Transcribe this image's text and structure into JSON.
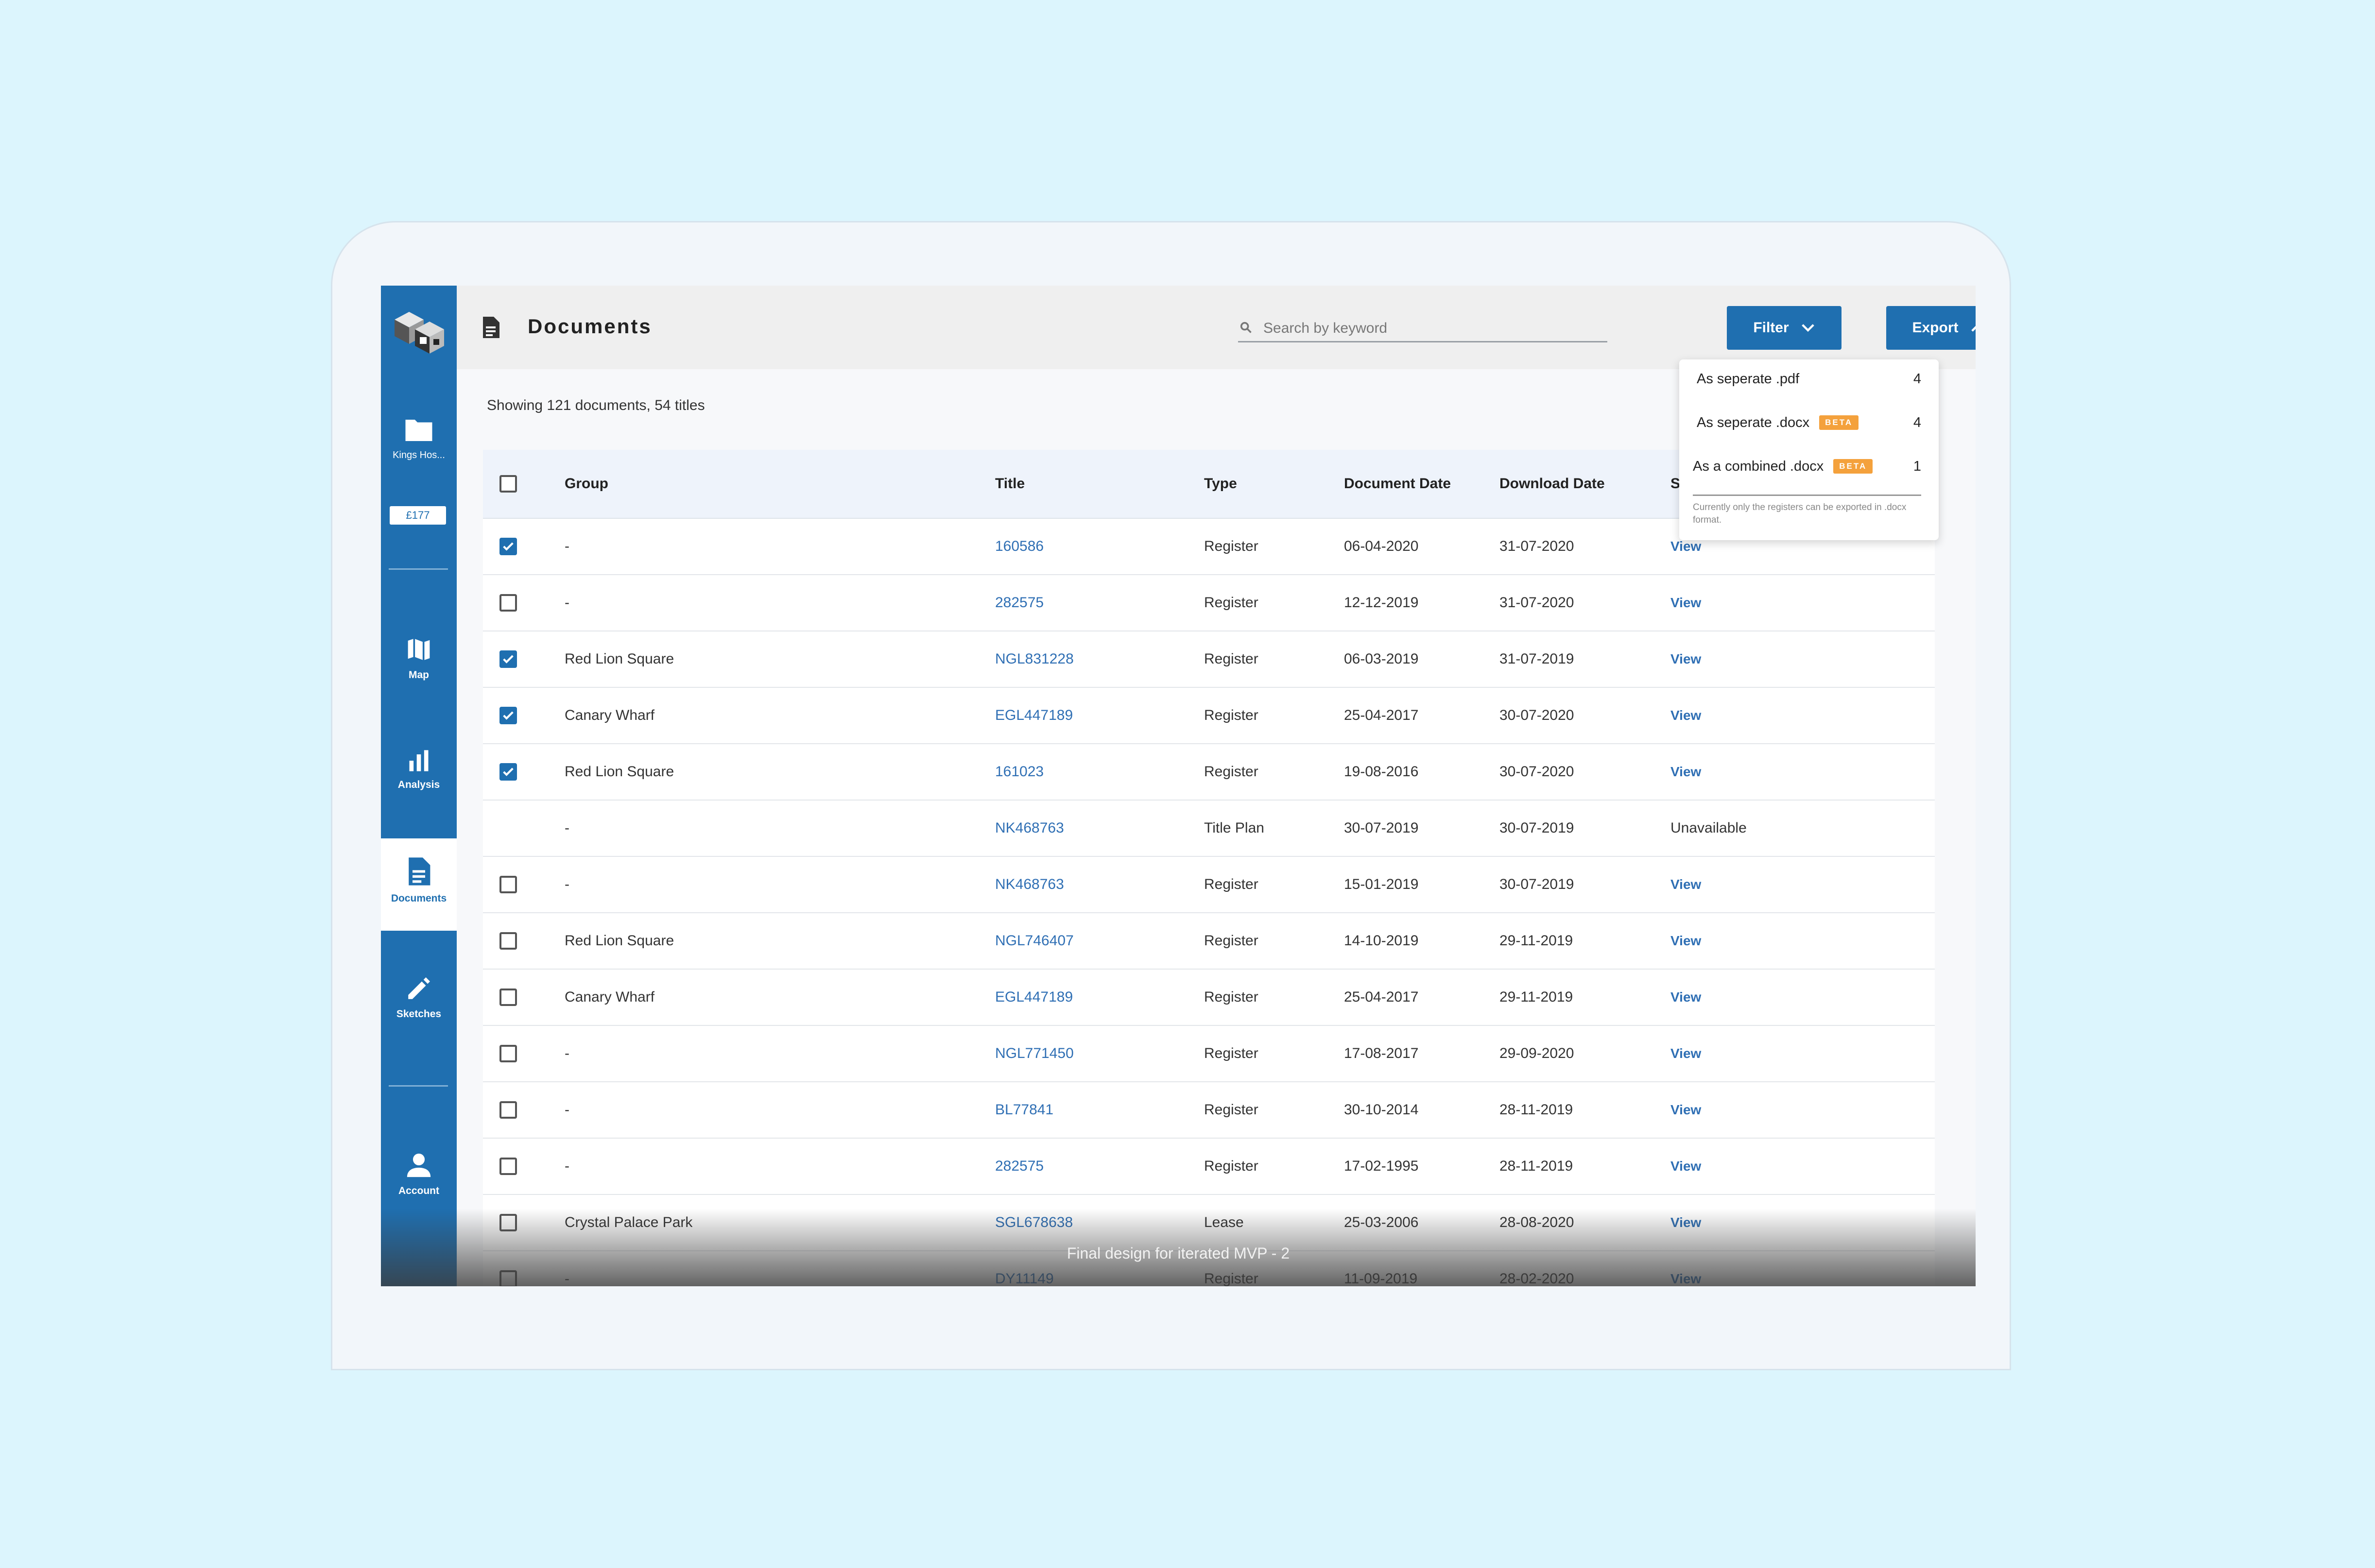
{
  "sidebar": {
    "project_label": "Kings Hos...",
    "credit": "£177",
    "nav": {
      "map": "Map",
      "analysis": "Analysis",
      "documents": "Documents",
      "sketches": "Sketches",
      "account": "Account"
    }
  },
  "header": {
    "title": "Documents",
    "search_placeholder": "Search by keyword",
    "filter_label": "Filter",
    "export_label": "Export"
  },
  "summary": "Showing 121 documents, 54 titles",
  "table": {
    "columns": {
      "group": "Group",
      "title": "Title",
      "type": "Type",
      "document_date": "Document Date",
      "download_date": "Download Date",
      "status": "S"
    },
    "rows": [
      {
        "checked": true,
        "group": "-",
        "title": "160586",
        "type": "Register",
        "document_date": "06-04-2020",
        "download_date": "31-07-2020",
        "status": "View"
      },
      {
        "checked": false,
        "group": "-",
        "title": "282575",
        "type": "Register",
        "document_date": "12-12-2019",
        "download_date": "31-07-2020",
        "status": "View"
      },
      {
        "checked": true,
        "group": "Red Lion Square",
        "title": "NGL831228",
        "type": "Register",
        "document_date": "06-03-2019",
        "download_date": "31-07-2019",
        "status": "View"
      },
      {
        "checked": true,
        "group": "Canary Wharf",
        "title": "EGL447189",
        "type": "Register",
        "document_date": "25-04-2017",
        "download_date": "30-07-2020",
        "status": "View"
      },
      {
        "checked": true,
        "group": "Red Lion Square",
        "title": "161023",
        "type": "Register",
        "document_date": "19-08-2016",
        "download_date": "30-07-2020",
        "status": "View"
      },
      {
        "checked": null,
        "group": "-",
        "title": "NK468763",
        "type": "Title Plan",
        "document_date": "30-07-2019",
        "download_date": "30-07-2019",
        "status": "Unavailable"
      },
      {
        "checked": false,
        "group": "-",
        "title": "NK468763",
        "type": "Register",
        "document_date": "15-01-2019",
        "download_date": "30-07-2019",
        "status": "View"
      },
      {
        "checked": false,
        "group": "Red Lion Square",
        "title": "NGL746407",
        "type": "Register",
        "document_date": "14-10-2019",
        "download_date": "29-11-2019",
        "status": "View"
      },
      {
        "checked": false,
        "group": "Canary Wharf",
        "title": "EGL447189",
        "type": "Register",
        "document_date": "25-04-2017",
        "download_date": "29-11-2019",
        "status": "View"
      },
      {
        "checked": false,
        "group": "-",
        "title": "NGL771450",
        "type": "Register",
        "document_date": "17-08-2017",
        "download_date": "29-09-2020",
        "status": "View"
      },
      {
        "checked": false,
        "group": "-",
        "title": "BL77841",
        "type": "Register",
        "document_date": "30-10-2014",
        "download_date": "28-11-2019",
        "status": "View"
      },
      {
        "checked": false,
        "group": "-",
        "title": "282575",
        "type": "Register",
        "document_date": "17-02-1995",
        "download_date": "28-11-2019",
        "status": "View"
      },
      {
        "checked": false,
        "group": "Crystal Palace Park",
        "title": "SGL678638",
        "type": "Lease",
        "document_date": "25-03-2006",
        "download_date": "28-08-2020",
        "status": "View"
      },
      {
        "checked": false,
        "group": "-",
        "title": "DY11149",
        "type": "Register",
        "document_date": "11-09-2019",
        "download_date": "28-02-2020",
        "status": "View"
      }
    ]
  },
  "export_menu": {
    "items": [
      {
        "label": "As seperate .pdf",
        "beta": "",
        "count": "4"
      },
      {
        "label": "As seperate .docx",
        "beta": "BETA",
        "count": "4"
      },
      {
        "label": "As a combined .docx",
        "beta": "BETA",
        "count": "1"
      }
    ],
    "note": "Currently only the registers can be exported in .docx format."
  },
  "caption": "Final design for iterated MVP - 2",
  "colors": {
    "primary": "#1f6fb0",
    "link": "#2f6fb4",
    "beta_badge": "#f4a13c",
    "background": "#dcf5fd"
  }
}
